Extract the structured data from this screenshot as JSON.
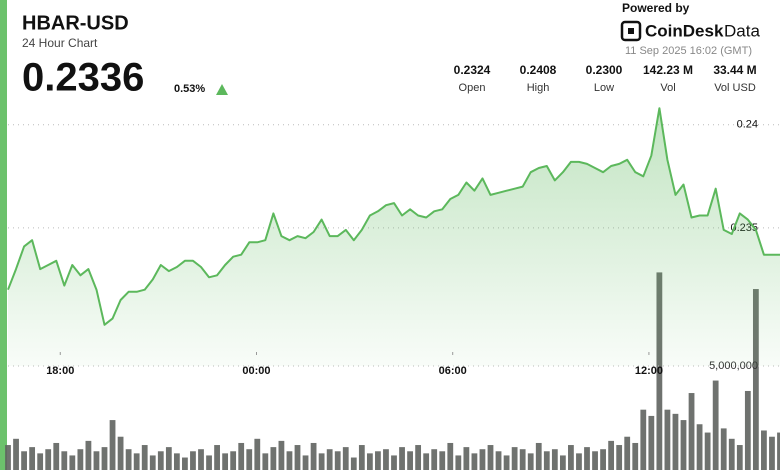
{
  "header": {
    "title": "HBAR-USD",
    "subtitle": "24 Hour Chart",
    "price": "0.2336",
    "change": "0.53%",
    "powered_by": "Powered by",
    "brand": "CoinDesk",
    "brand_suffix": "Data",
    "timestamp": "11 Sep 2025 16:02 (GMT)"
  },
  "stats": [
    {
      "value": "0.2324",
      "label": "Open"
    },
    {
      "value": "0.2408",
      "label": "High"
    },
    {
      "value": "0.2300",
      "label": "Low"
    },
    {
      "value": "142.23 M",
      "label": "Vol"
    },
    {
      "value": "33.44 M",
      "label": "Vol USD"
    }
  ],
  "chart_data": {
    "type": "area",
    "xlim": [
      0,
      96
    ],
    "xticks": [
      {
        "value": 6.5,
        "label": "18:00"
      },
      {
        "value": 30.9,
        "label": "00:00"
      },
      {
        "value": 55.3,
        "label": "06:00"
      },
      {
        "value": 79.7,
        "label": "12:00"
      }
    ],
    "ylim": [
      0.2283,
      0.2412
    ],
    "yticks": [
      0.235,
      0.24
    ],
    "y2lim": [
      0,
      10000000
    ],
    "y2ticks": [
      {
        "value": 5000000,
        "label": "5,000,000"
      }
    ],
    "grid": true,
    "series": [
      {
        "type": "area",
        "color": "#5cb85c",
        "values": [
          0.232,
          0.233,
          0.2341,
          0.2344,
          0.233,
          0.2332,
          0.2334,
          0.2322,
          0.2332,
          0.2327,
          0.233,
          0.232,
          0.2303,
          0.2306,
          0.2315,
          0.2319,
          0.2319,
          0.232,
          0.2325,
          0.2332,
          0.2329,
          0.2331,
          0.2334,
          0.2334,
          0.2331,
          0.2326,
          0.2327,
          0.2332,
          0.2336,
          0.2337,
          0.2343,
          0.2343,
          0.2344,
          0.2357,
          0.2346,
          0.2344,
          0.2346,
          0.2345,
          0.2348,
          0.2354,
          0.2346,
          0.2346,
          0.2349,
          0.2344,
          0.2349,
          0.2356,
          0.2358,
          0.2361,
          0.2362,
          0.2356,
          0.2359,
          0.2356,
          0.2355,
          0.2358,
          0.2359,
          0.2364,
          0.2366,
          0.2372,
          0.2368,
          0.2374,
          0.2366,
          0.2367,
          0.2368,
          0.2369,
          0.237,
          0.2377,
          0.2379,
          0.238,
          0.2373,
          0.2377,
          0.2382,
          0.2382,
          0.2381,
          0.2379,
          0.2377,
          0.238,
          0.2381,
          0.2383,
          0.2377,
          0.2375,
          0.2385,
          0.2408,
          0.2383,
          0.2366,
          0.2371,
          0.2355,
          0.2356,
          0.2356,
          0.2369,
          0.2349,
          0.2347,
          0.2357,
          0.2354,
          0.2349,
          0.2337,
          0.2337,
          0.2337
        ]
      },
      {
        "type": "bar",
        "axis": "y2",
        "color": "#5f635f",
        "values": [
          1200000,
          1500000,
          900000,
          1100000,
          800000,
          1000000,
          1300000,
          900000,
          700000,
          1000000,
          1400000,
          900000,
          1100000,
          2400000,
          1600000,
          1000000,
          800000,
          1200000,
          700000,
          900000,
          1100000,
          800000,
          600000,
          900000,
          1000000,
          700000,
          1200000,
          800000,
          900000,
          1300000,
          1000000,
          1500000,
          800000,
          1100000,
          1400000,
          900000,
          1200000,
          700000,
          1300000,
          800000,
          1000000,
          900000,
          1100000,
          600000,
          1200000,
          800000,
          900000,
          1000000,
          700000,
          1100000,
          900000,
          1200000,
          800000,
          1000000,
          900000,
          1300000,
          700000,
          1100000,
          800000,
          1000000,
          1200000,
          900000,
          700000,
          1100000,
          1000000,
          800000,
          1300000,
          900000,
          1000000,
          700000,
          1200000,
          800000,
          1100000,
          900000,
          1000000,
          1400000,
          1200000,
          1600000,
          1300000,
          2900000,
          2600000,
          9500000,
          2900000,
          2700000,
          2400000,
          3700000,
          2200000,
          1800000,
          4300000,
          2000000,
          1500000,
          1200000,
          3800000,
          8700000,
          1900000,
          1600000,
          1800000
        ]
      }
    ]
  }
}
